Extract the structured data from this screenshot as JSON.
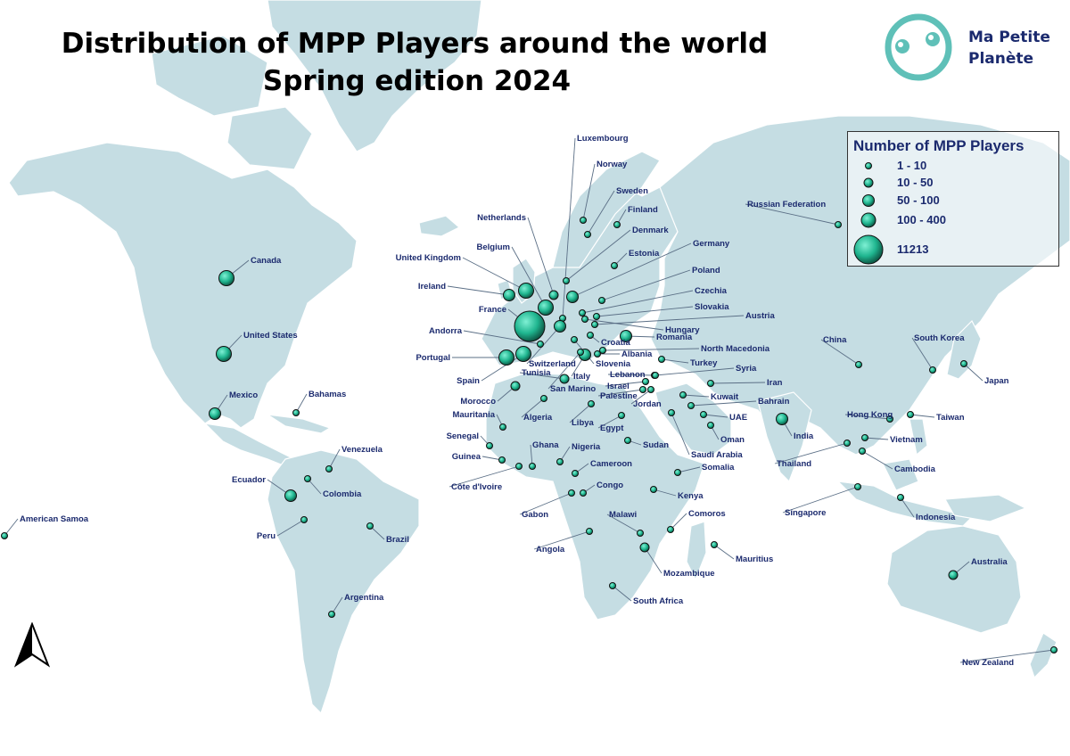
{
  "title_line1": "Distribution of MPP Players around the world",
  "title_line2": "Spring edition 2024",
  "logo": {
    "line1": "Ma Petite",
    "line2": "Planète",
    "color": "#5fc0b8"
  },
  "legend": {
    "title": "Number of MPP Players",
    "entries": [
      "1 - 10",
      "10 - 50",
      "50 - 100",
      "100 - 400",
      "11213"
    ]
  },
  "colors": {
    "land": "#c5dde3",
    "bubble": "#1fb58f",
    "label": "#1b2a6e",
    "leader": "#5b6f86"
  },
  "countries": [
    {
      "name": "Canada",
      "cat": 3
    },
    {
      "name": "United States",
      "cat": 3
    },
    {
      "name": "Mexico",
      "cat": 2
    },
    {
      "name": "Bahamas",
      "cat": 0
    },
    {
      "name": "American Samoa",
      "cat": 0
    },
    {
      "name": "Venezuela",
      "cat": 0
    },
    {
      "name": "Colombia",
      "cat": 0
    },
    {
      "name": "Ecuador",
      "cat": 2
    },
    {
      "name": "Peru",
      "cat": 0
    },
    {
      "name": "Brazil",
      "cat": 0
    },
    {
      "name": "Argentina",
      "cat": 0
    },
    {
      "name": "Ireland",
      "cat": 2
    },
    {
      "name": "United Kingdom",
      "cat": 3
    },
    {
      "name": "Belgium",
      "cat": 3
    },
    {
      "name": "Netherlands",
      "cat": 1
    },
    {
      "name": "Luxembourg",
      "cat": 0
    },
    {
      "name": "Norway",
      "cat": 0
    },
    {
      "name": "Sweden",
      "cat": 0
    },
    {
      "name": "Finland",
      "cat": 0
    },
    {
      "name": "Denmark",
      "cat": 0
    },
    {
      "name": "Estonia",
      "cat": 0
    },
    {
      "name": "Germany",
      "cat": 2
    },
    {
      "name": "Poland",
      "cat": 0
    },
    {
      "name": "Czechia",
      "cat": 0
    },
    {
      "name": "Slovakia",
      "cat": 0
    },
    {
      "name": "Austria",
      "cat": 0
    },
    {
      "name": "Hungary",
      "cat": 0
    },
    {
      "name": "Romania",
      "cat": 2
    },
    {
      "name": "Croatia",
      "cat": 0
    },
    {
      "name": "North Macedonia",
      "cat": 0
    },
    {
      "name": "Albania",
      "cat": 0
    },
    {
      "name": "Turkey",
      "cat": 0
    },
    {
      "name": "Slovenia",
      "cat": 0
    },
    {
      "name": "France",
      "cat": 4
    },
    {
      "name": "Andorra",
      "cat": 0
    },
    {
      "name": "Switzerland",
      "cat": 2
    },
    {
      "name": "Italy",
      "cat": 2
    },
    {
      "name": "Portugal",
      "cat": 3
    },
    {
      "name": "Spain",
      "cat": 3
    },
    {
      "name": "Tunisia",
      "cat": 1
    },
    {
      "name": "San Marino",
      "cat": 0
    },
    {
      "name": "Morocco",
      "cat": 1
    },
    {
      "name": "Algeria",
      "cat": 0
    },
    {
      "name": "Libya",
      "cat": 0
    },
    {
      "name": "Mauritania",
      "cat": 0
    },
    {
      "name": "Senegal",
      "cat": 0
    },
    {
      "name": "Guinea",
      "cat": 0
    },
    {
      "name": "Côte d'Ivoire",
      "cat": 0
    },
    {
      "name": "Ghana",
      "cat": 0
    },
    {
      "name": "Nigeria",
      "cat": 0
    },
    {
      "name": "Cameroon",
      "cat": 0
    },
    {
      "name": "Gabon",
      "cat": 0
    },
    {
      "name": "Congo",
      "cat": 0
    },
    {
      "name": "Angola",
      "cat": 0
    },
    {
      "name": "Egypt",
      "cat": 0
    },
    {
      "name": "Sudan",
      "cat": 0
    },
    {
      "name": "Israel",
      "cat": 0
    },
    {
      "name": "Lebanon",
      "cat": 0
    },
    {
      "name": "Palestine",
      "cat": 0
    },
    {
      "name": "Jordan",
      "cat": 0
    },
    {
      "name": "Syria",
      "cat": 0
    },
    {
      "name": "Iran",
      "cat": 0
    },
    {
      "name": "Kuwait",
      "cat": 0
    },
    {
      "name": "Bahrain",
      "cat": 0
    },
    {
      "name": "UAE",
      "cat": 0
    },
    {
      "name": "Oman",
      "cat": 0
    },
    {
      "name": "Saudi Arabia",
      "cat": 0
    },
    {
      "name": "Somalia",
      "cat": 0
    },
    {
      "name": "Kenya",
      "cat": 0
    },
    {
      "name": "Malawi",
      "cat": 0
    },
    {
      "name": "Comoros",
      "cat": 0
    },
    {
      "name": "Mozambique",
      "cat": 1
    },
    {
      "name": "Mauritius",
      "cat": 0
    },
    {
      "name": "South Africa",
      "cat": 0
    },
    {
      "name": "Russian Federation",
      "cat": 0
    },
    {
      "name": "China",
      "cat": 0
    },
    {
      "name": "South Korea",
      "cat": 0
    },
    {
      "name": "Japan",
      "cat": 0
    },
    {
      "name": "India",
      "cat": 2
    },
    {
      "name": "Hong Kong",
      "cat": 0
    },
    {
      "name": "Taiwan",
      "cat": 0
    },
    {
      "name": "Vietnam",
      "cat": 0
    },
    {
      "name": "Thailand",
      "cat": 0
    },
    {
      "name": "Cambodia",
      "cat": 0
    },
    {
      "name": "Singapore",
      "cat": 0
    },
    {
      "name": "Indonesia",
      "cat": 0
    },
    {
      "name": "Australia",
      "cat": 1
    },
    {
      "name": "New Zealand",
      "cat": 0
    }
  ]
}
